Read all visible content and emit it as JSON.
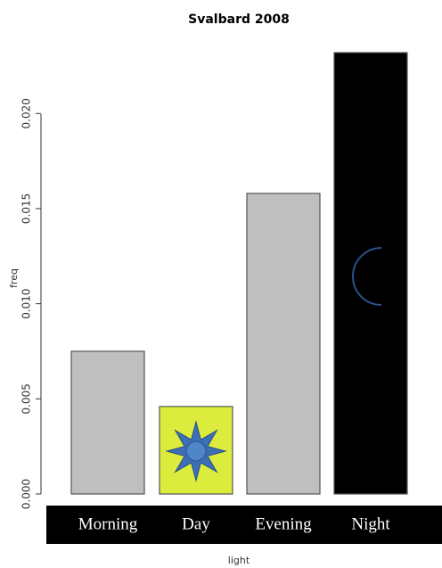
{
  "chart_data": {
    "type": "bar",
    "title": "Svalbard 2008",
    "xlabel": "light",
    "ylabel": "freq",
    "categories": [
      "Morning",
      "Day",
      "Evening",
      "Night"
    ],
    "values": [
      0.0075,
      0.0046,
      0.0158,
      0.0232
    ],
    "colors": [
      "#bfbfbf",
      "#dcec3c",
      "#bfbfbf",
      "#000000"
    ],
    "ylim": [
      0,
      0.0232
    ],
    "yticks": [
      {
        "value": 0,
        "label": "0.000"
      },
      {
        "value": 0.005,
        "label": "0.005"
      },
      {
        "value": 0.01,
        "label": "0.010"
      },
      {
        "value": 0.015,
        "label": "0.015"
      },
      {
        "value": 0.02,
        "label": "0.020"
      }
    ]
  }
}
